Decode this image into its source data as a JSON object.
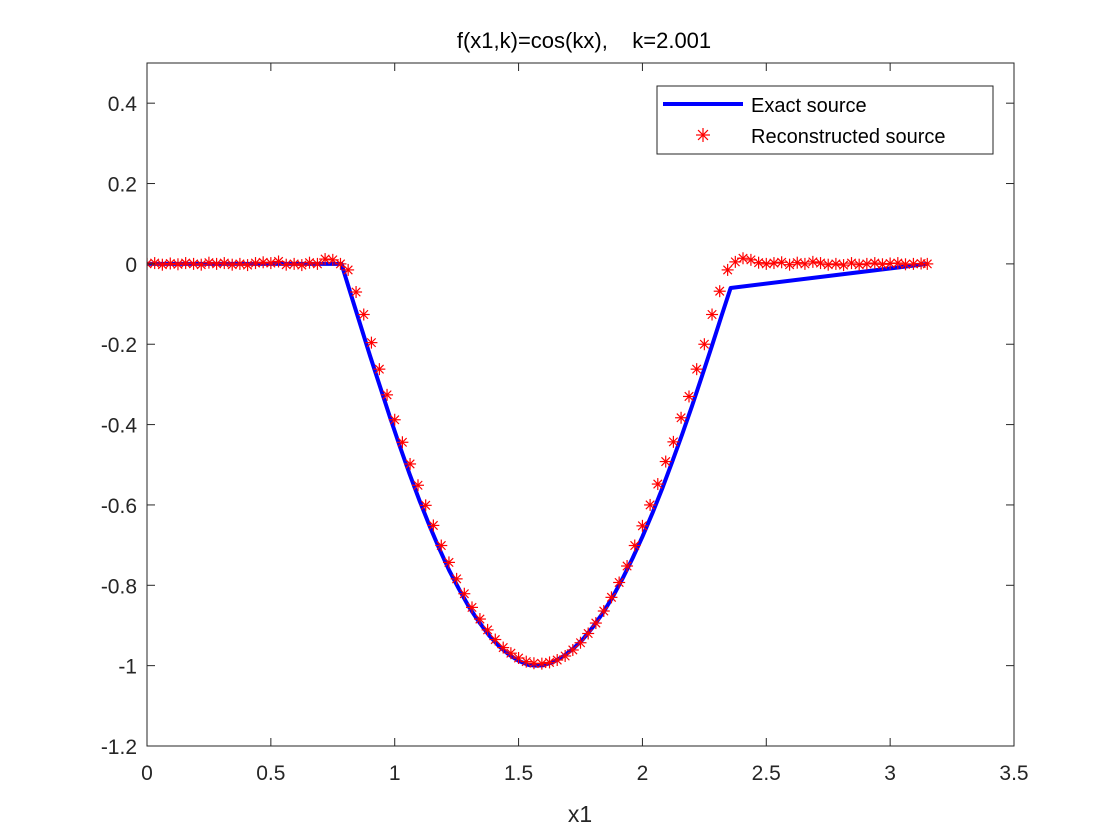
{
  "chart_data": {
    "type": "line",
    "title": "f(x1,k)=cos(kx),    k=2.001",
    "xlabel": "x1",
    "ylabel": "",
    "xlim": [
      0,
      3.5
    ],
    "ylim": [
      -1.2,
      0.5
    ],
    "xticks": [
      "0",
      "0.5",
      "1",
      "1.5",
      "2",
      "2.5",
      "3",
      "3.5"
    ],
    "yticks": [
      "-1.2",
      "-1",
      "-0.8",
      "-0.6",
      "-0.4",
      "-0.2",
      "0",
      "0.2",
      "0.4"
    ],
    "grid": false,
    "legend_position": "top-right",
    "series": [
      {
        "name": "Exact source",
        "style": "line",
        "color": "#0000ff",
        "x": [
          0,
          0.785,
          0.82,
          0.86,
          0.9,
          0.94,
          0.98,
          1.02,
          1.06,
          1.1,
          1.14,
          1.18,
          1.22,
          1.26,
          1.3,
          1.34,
          1.38,
          1.42,
          1.46,
          1.5,
          1.54,
          1.57,
          1.6,
          1.64,
          1.68,
          1.72,
          1.76,
          1.8,
          1.84,
          1.88,
          1.92,
          1.96,
          2.0,
          2.04,
          2.08,
          2.12,
          2.16,
          2.2,
          2.24,
          2.28,
          2.32,
          2.356,
          3.15
        ],
        "y": [
          0,
          0,
          -0.07,
          -0.149,
          -0.228,
          -0.304,
          -0.38,
          -0.453,
          -0.523,
          -0.589,
          -0.651,
          -0.709,
          -0.763,
          -0.81,
          -0.854,
          -0.891,
          -0.924,
          -0.951,
          -0.972,
          -0.988,
          -0.998,
          -1.0,
          -0.999,
          -0.991,
          -0.977,
          -0.958,
          -0.934,
          -0.904,
          -0.869,
          -0.829,
          -0.783,
          -0.733,
          -0.679,
          -0.621,
          -0.559,
          -0.493,
          -0.425,
          -0.354,
          -0.28,
          -0.205,
          -0.128,
          -0.06,
          0
        ]
      },
      {
        "name": "Reconstructed source",
        "style": "markers",
        "marker": "asterisk",
        "color": "#ff0000",
        "x": [
          0.0,
          0.031,
          0.062,
          0.094,
          0.125,
          0.156,
          0.188,
          0.219,
          0.25,
          0.281,
          0.312,
          0.344,
          0.375,
          0.406,
          0.438,
          0.469,
          0.5,
          0.531,
          0.562,
          0.594,
          0.625,
          0.656,
          0.688,
          0.719,
          0.75,
          0.781,
          0.812,
          0.844,
          0.875,
          0.906,
          0.938,
          0.969,
          1.0,
          1.031,
          1.062,
          1.094,
          1.125,
          1.156,
          1.188,
          1.219,
          1.25,
          1.281,
          1.312,
          1.344,
          1.375,
          1.406,
          1.438,
          1.469,
          1.5,
          1.531,
          1.562,
          1.594,
          1.625,
          1.656,
          1.688,
          1.719,
          1.75,
          1.781,
          1.812,
          1.844,
          1.875,
          1.906,
          1.938,
          1.969,
          2.0,
          2.031,
          2.062,
          2.094,
          2.125,
          2.156,
          2.188,
          2.219,
          2.25,
          2.281,
          2.312,
          2.344,
          2.375,
          2.406,
          2.438,
          2.469,
          2.5,
          2.531,
          2.562,
          2.594,
          2.625,
          2.656,
          2.688,
          2.719,
          2.75,
          2.781,
          2.812,
          2.844,
          2.875,
          2.906,
          2.938,
          2.969,
          3.0,
          3.031,
          3.062,
          3.094,
          3.125,
          3.15
        ],
        "y": [
          0.0,
          0.002,
          -0.002,
          0.001,
          -0.001,
          0.002,
          0.0,
          -0.002,
          0.003,
          0.0,
          0.002,
          -0.002,
          0.0,
          -0.003,
          0.002,
          0.004,
          0.002,
          0.006,
          -0.002,
          0.0,
          -0.003,
          0.003,
          0.0,
          0.012,
          0.01,
          0.0,
          -0.015,
          -0.07,
          -0.126,
          -0.196,
          -0.262,
          -0.326,
          -0.388,
          -0.444,
          -0.498,
          -0.551,
          -0.601,
          -0.651,
          -0.701,
          -0.743,
          -0.784,
          -0.821,
          -0.855,
          -0.884,
          -0.911,
          -0.935,
          -0.955,
          -0.969,
          -0.981,
          -0.99,
          -0.994,
          -0.995,
          -0.992,
          -0.986,
          -0.976,
          -0.961,
          -0.943,
          -0.92,
          -0.894,
          -0.864,
          -0.83,
          -0.793,
          -0.752,
          -0.701,
          -0.652,
          -0.6,
          -0.548,
          -0.492,
          -0.443,
          -0.383,
          -0.33,
          -0.262,
          -0.2,
          -0.126,
          -0.068,
          -0.015,
          0.005,
          0.014,
          0.01,
          0.003,
          0.0,
          0.002,
          0.004,
          -0.002,
          0.003,
          0.0,
          0.005,
          0.002,
          -0.002,
          0.0,
          -0.003,
          0.002,
          -0.002,
          0.0,
          0.002,
          -0.001,
          0.001,
          0.002,
          -0.001,
          0.0,
          0.001,
          0.0
        ]
      }
    ]
  }
}
